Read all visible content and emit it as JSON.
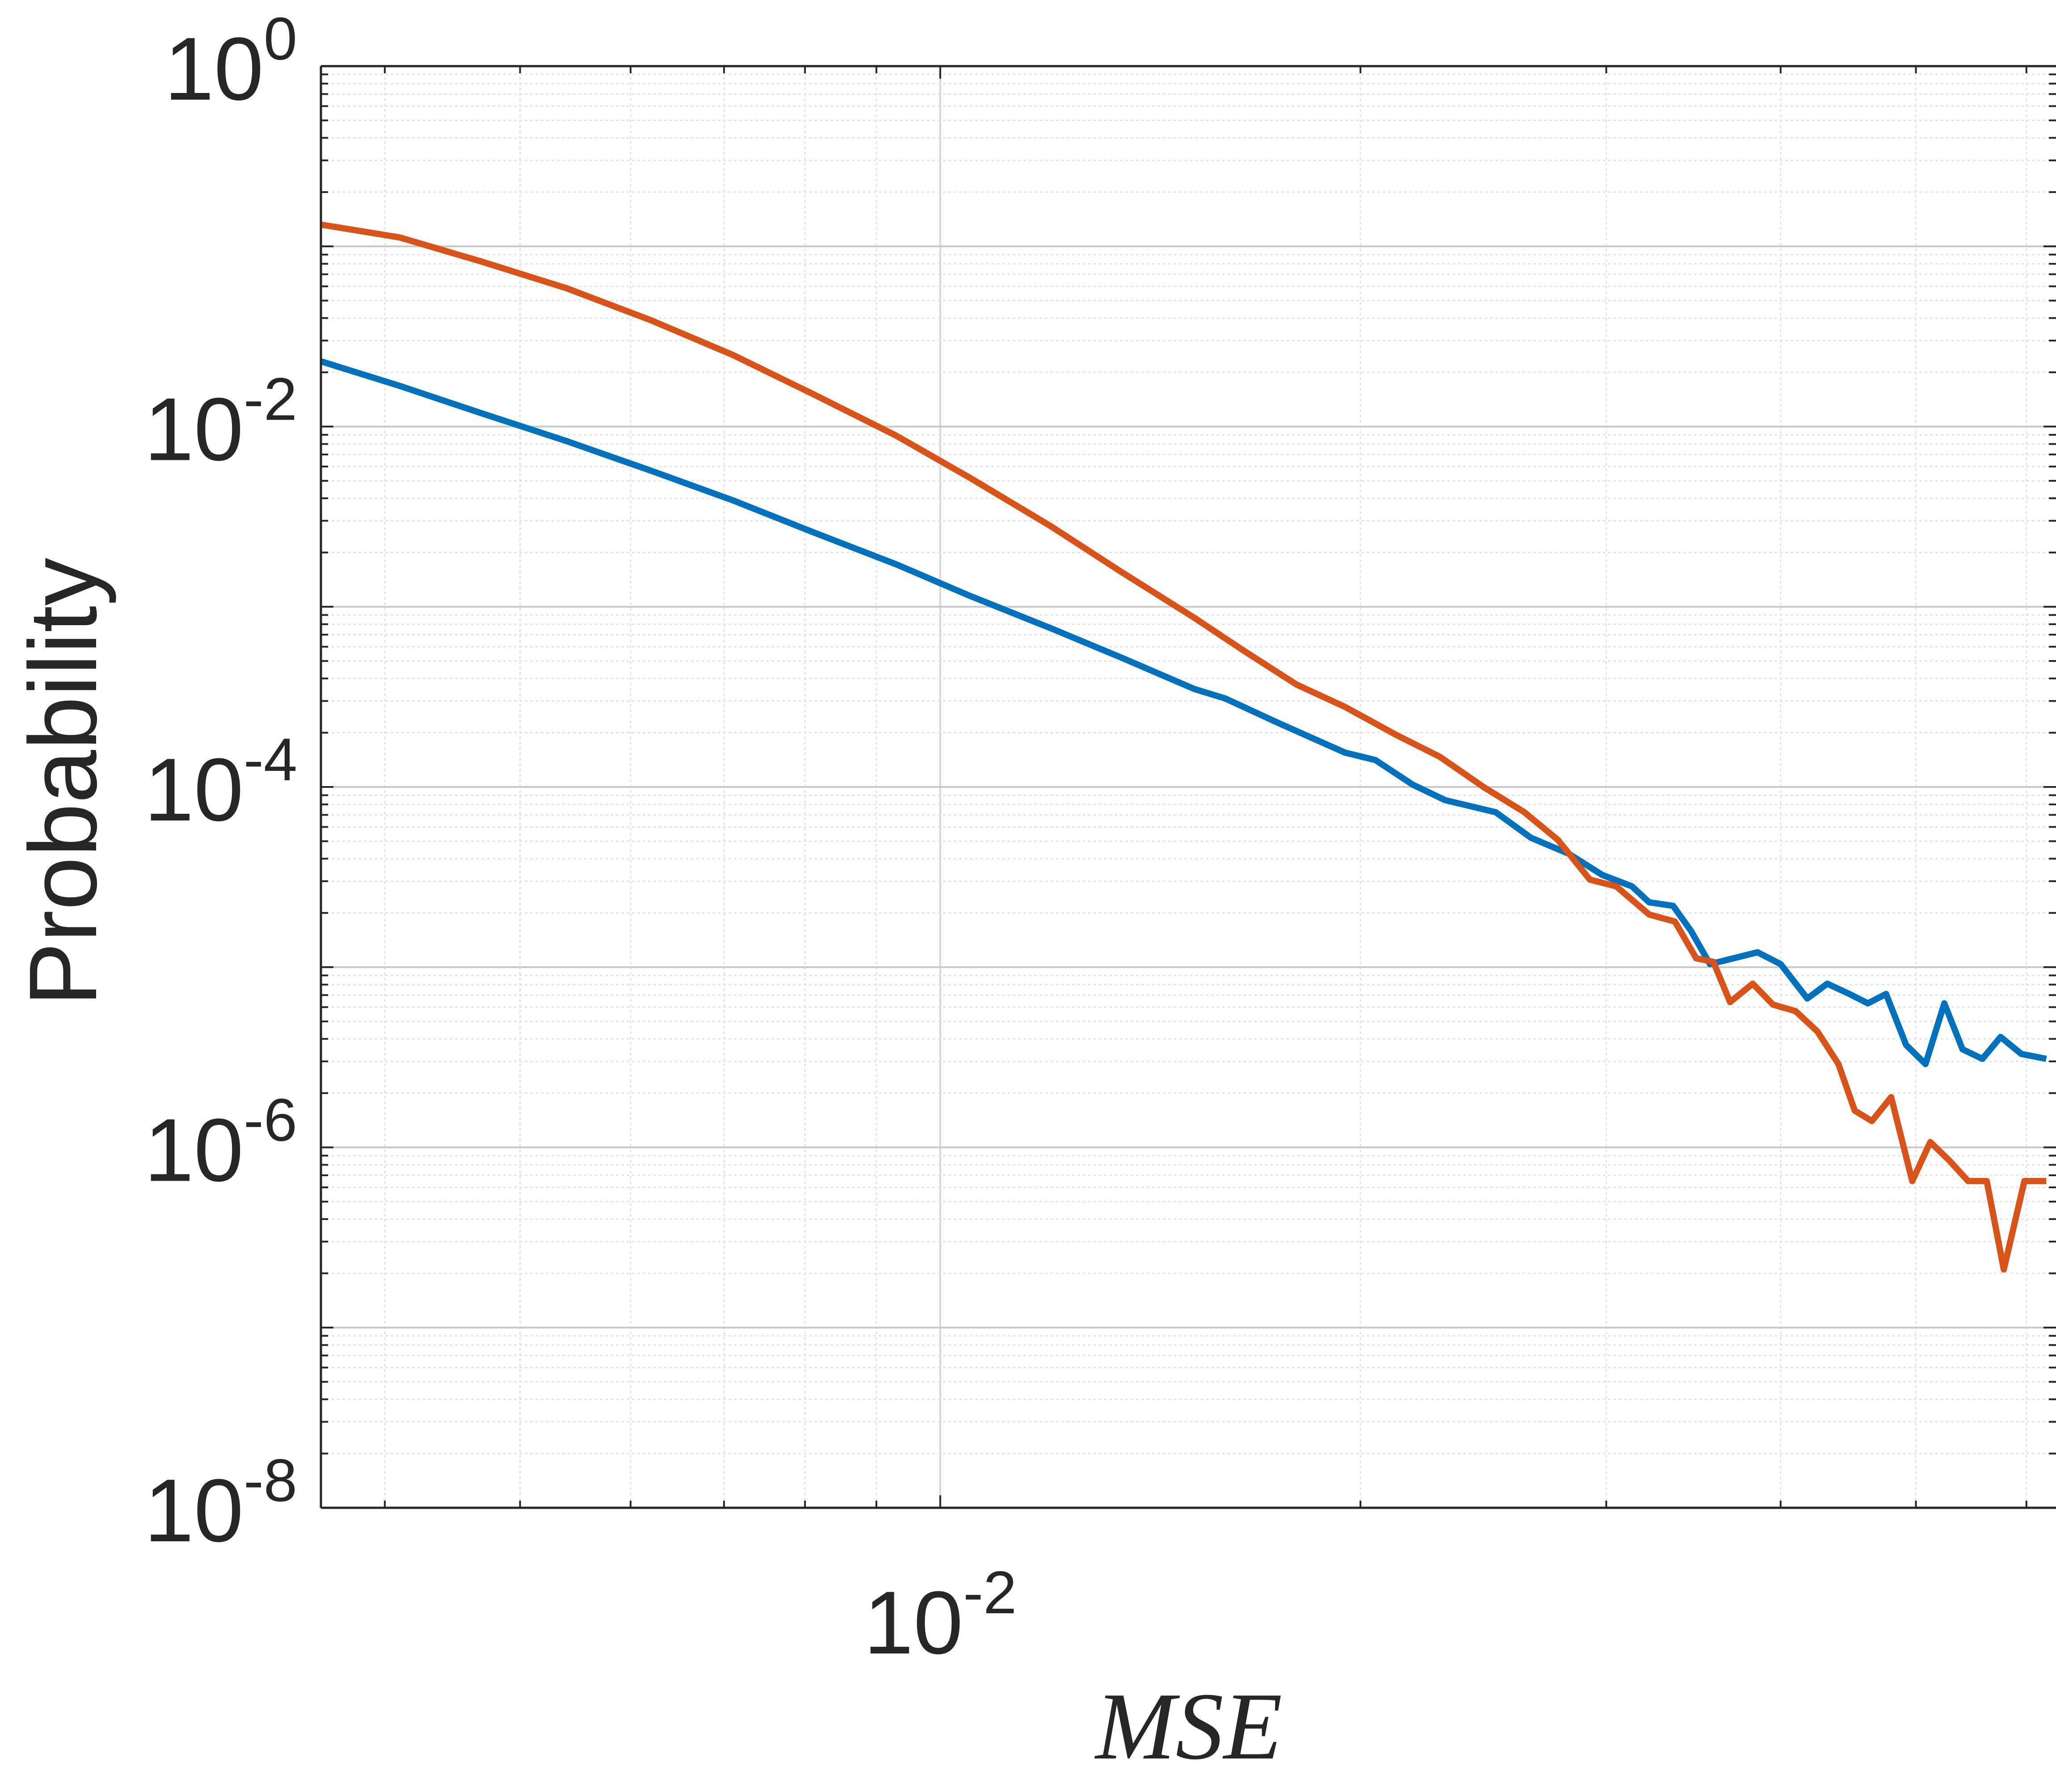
{
  "chart_data": {
    "type": "line",
    "title": "",
    "xlabel": "MSE",
    "ylabel": "Probability",
    "xscale": "log",
    "yscale": "log",
    "xlim": [
      0.0036,
      0.063
    ],
    "ylim": [
      1e-08,
      1
    ],
    "grid": true,
    "minor_grid": true,
    "legend": "none",
    "x_ticks": [
      {
        "base": "10",
        "exp": "-2",
        "value": 0.01
      }
    ],
    "y_ticks": [
      {
        "base": "10",
        "exp": "0",
        "value": 1
      },
      {
        "base": "10",
        "exp": "-2",
        "value": 0.01
      },
      {
        "base": "10",
        "exp": "-4",
        "value": 0.0001
      },
      {
        "base": "10",
        "exp": "-6",
        "value": 1e-06
      },
      {
        "base": "10",
        "exp": "-8",
        "value": 1e-08
      }
    ],
    "series": [
      {
        "color": "#0072BD",
        "points": [
          [
            0.0036,
            0.023
          ],
          [
            0.0041,
            0.0168
          ],
          [
            0.0047,
            0.0118
          ],
          [
            0.0054,
            0.0083
          ],
          [
            0.0062,
            0.0057
          ],
          [
            0.0071,
            0.0039
          ],
          [
            0.0081,
            0.0026
          ],
          [
            0.0093,
            0.00172
          ],
          [
            0.0105,
            0.00115
          ],
          [
            0.012,
            0.00076
          ],
          [
            0.0135,
            0.00052
          ],
          [
            0.0152,
            0.00035
          ],
          [
            0.016,
            0.00031
          ],
          [
            0.0175,
            0.000225
          ],
          [
            0.0195,
            0.000155
          ],
          [
            0.0205,
            0.000141
          ],
          [
            0.0218,
            0.000103
          ],
          [
            0.023,
            8.45e-05
          ],
          [
            0.025,
            7.24e-05
          ],
          [
            0.0265,
            5.22e-05
          ],
          [
            0.0282,
            4.26e-05
          ],
          [
            0.0298,
            3.25e-05
          ],
          [
            0.0313,
            2.81e-05
          ],
          [
            0.0322,
            2.29e-05
          ],
          [
            0.0335,
            2.19e-05
          ],
          [
            0.0345,
            1.59e-05
          ],
          [
            0.0356,
            1.04e-05
          ],
          [
            0.037,
            1.12e-05
          ],
          [
            0.0385,
            1.21e-05
          ],
          [
            0.04,
            1.04e-05
          ],
          [
            0.0418,
            6.7e-06
          ],
          [
            0.0432,
            8.1e-06
          ],
          [
            0.0448,
            7.1e-06
          ],
          [
            0.0462,
            6.3e-06
          ],
          [
            0.0476,
            7.1e-06
          ],
          [
            0.0492,
            3.7e-06
          ],
          [
            0.0508,
            2.9e-06
          ],
          [
            0.0524,
            6.3e-06
          ],
          [
            0.054,
            3.5e-06
          ],
          [
            0.0558,
            3.1e-06
          ],
          [
            0.0575,
            4.1e-06
          ],
          [
            0.0595,
            3.3e-06
          ],
          [
            0.062,
            3.1e-06
          ]
        ]
      },
      {
        "color": "#D95319",
        "points": [
          [
            0.0036,
            0.132
          ],
          [
            0.0041,
            0.112
          ],
          [
            0.0047,
            0.082
          ],
          [
            0.0054,
            0.0585
          ],
          [
            0.0062,
            0.039
          ],
          [
            0.0071,
            0.025
          ],
          [
            0.0081,
            0.0152
          ],
          [
            0.0093,
            0.0089
          ],
          [
            0.0105,
            0.0052
          ],
          [
            0.012,
            0.0028
          ],
          [
            0.0135,
            0.00155
          ],
          [
            0.0152,
            0.00087
          ],
          [
            0.0165,
            0.00057
          ],
          [
            0.018,
            0.00037
          ],
          [
            0.0195,
            0.000278
          ],
          [
            0.0212,
            0.000195
          ],
          [
            0.0228,
            0.000147
          ],
          [
            0.0245,
            0.0001
          ],
          [
            0.0262,
            7.26e-05
          ],
          [
            0.0277,
            5.09e-05
          ],
          [
            0.0292,
            3.06e-05
          ],
          [
            0.0305,
            2.81e-05
          ],
          [
            0.0322,
            1.96e-05
          ],
          [
            0.0336,
            1.79e-05
          ],
          [
            0.0348,
            1.12e-05
          ],
          [
            0.0358,
            1.07e-05
          ],
          [
            0.0368,
            6.4e-06
          ],
          [
            0.0382,
            8.1e-06
          ],
          [
            0.0395,
            6.2e-06
          ],
          [
            0.041,
            5.7e-06
          ],
          [
            0.0425,
            4.4e-06
          ],
          [
            0.044,
            2.9e-06
          ],
          [
            0.0452,
            1.6e-06
          ],
          [
            0.0465,
            1.4e-06
          ],
          [
            0.048,
            1.9e-06
          ],
          [
            0.0497,
            6.5e-07
          ],
          [
            0.0512,
            1.07e-06
          ],
          [
            0.0528,
            8.5e-07
          ],
          [
            0.0545,
            6.5e-07
          ],
          [
            0.0562,
            6.5e-07
          ],
          [
            0.0578,
            2.1e-07
          ],
          [
            0.0598,
            6.5e-07
          ],
          [
            0.062,
            6.5e-07
          ]
        ]
      }
    ]
  }
}
